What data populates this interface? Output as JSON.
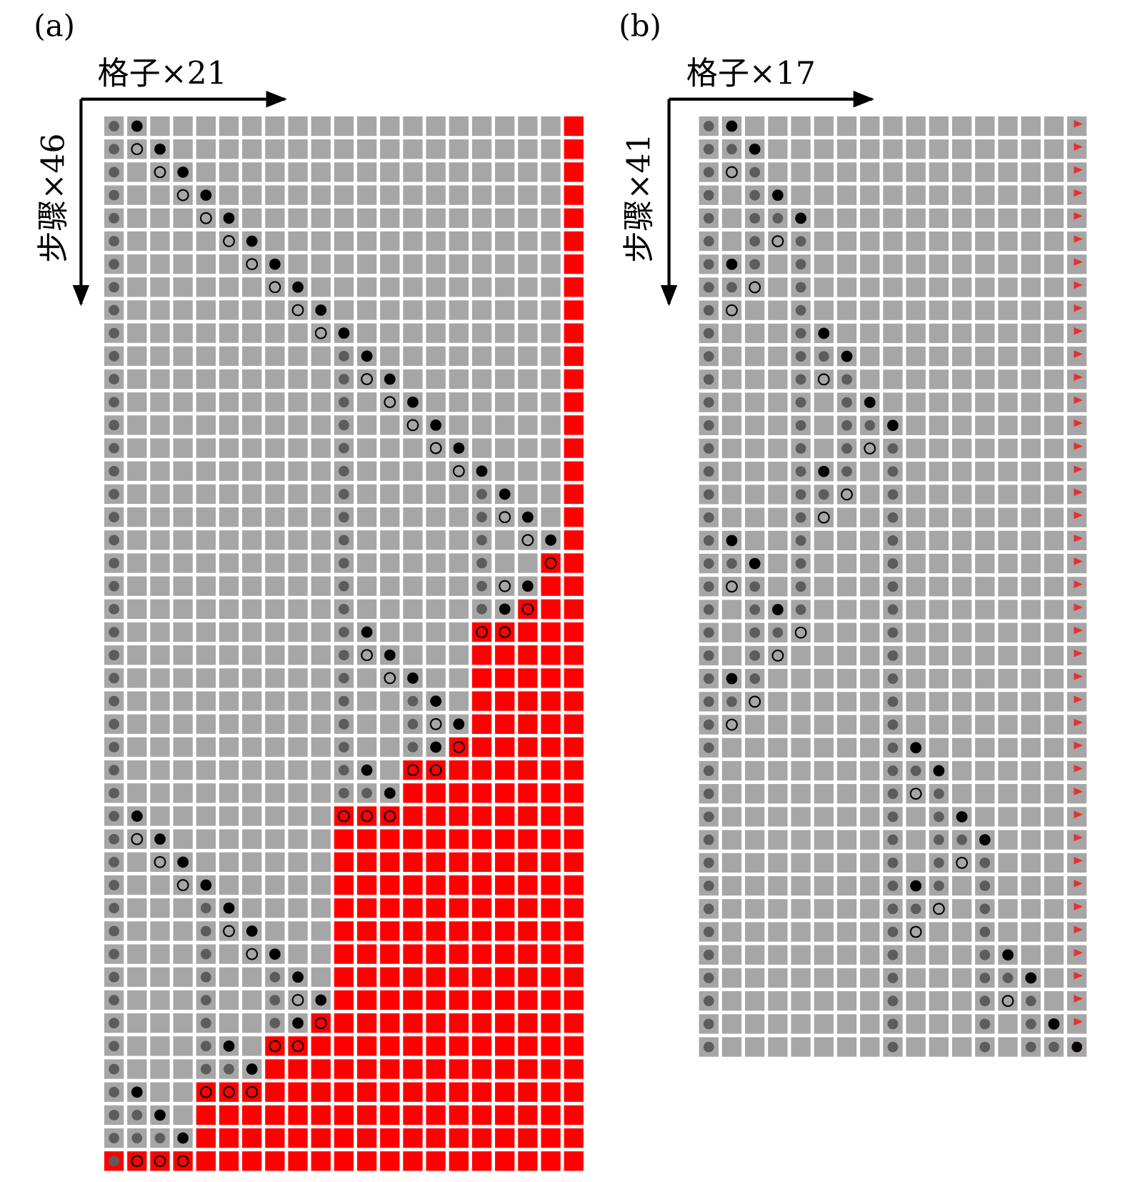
{
  "panel_a": {
    "label": "(a)",
    "x_axis": "格子×21",
    "y_axis": "步骤×46"
  },
  "panel_b": {
    "label": "(b)",
    "x_axis": "格子×17",
    "y_axis": "步骤×41"
  }
}
